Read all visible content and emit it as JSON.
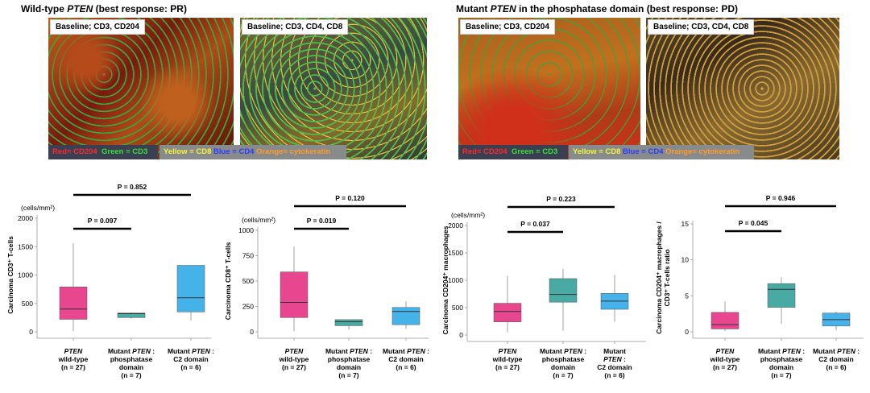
{
  "panels": {
    "left": {
      "title_prefix": "Wild-type ",
      "title_gene": "PTEN",
      "title_suffix": " (best response: PR)",
      "image1_label": "Baseline; CD3, CD204",
      "image2_label": "Baseline; CD3, CD4, CD8"
    },
    "right": {
      "title_prefix": "Mutant ",
      "title_gene": "PTEN",
      "title_suffix": " in the phosphatase domain (best response: PD)",
      "image1_label": "Baseline; CD3, CD204",
      "image2_label": "Baseline; CD3, CD4, CD8"
    }
  },
  "legend": {
    "red": "Red= CD204",
    "green": "Green = CD3",
    "yellow": "Yellow = CD8",
    "blue": "Blue = CD4",
    "orange": "Orange= cytokeratin",
    "colors": {
      "red": "#ff2a2a",
      "green": "#38e038",
      "yellow": "#f5f53a",
      "blue": "#2a3bff",
      "orange": "#ff9a2a"
    }
  },
  "group_labels": [
    [
      "PTEN",
      "wild-type",
      "(n = 27)"
    ],
    [
      "Mutant PTEN :",
      "phosphatase",
      "domain",
      "(n = 7)"
    ],
    [
      "Mutant PTEN :",
      "C2 domain",
      "(n = 6)"
    ]
  ],
  "group_labels_alt3": [
    "Mutant",
    "PTEN :",
    "C2 domain",
    "(n = 6)"
  ],
  "chart_data": [
    {
      "type": "box",
      "unit": "(cells/mm²)",
      "ylabel": "Carcinoma CD3⁺ T-cells",
      "ylim": [
        0,
        2000
      ],
      "yticks": [
        0,
        500,
        1000,
        1500,
        2000
      ],
      "boxes": [
        {
          "group": "PTEN wild-type (n = 27)",
          "min": 10,
          "q1": 220,
          "median": 400,
          "q3": 790,
          "max": 1560,
          "color": "#e8478f"
        },
        {
          "group": "Mutant PTEN : phosphatase domain (n = 7)",
          "min": 230,
          "q1": 250,
          "median": 320,
          "q3": 330,
          "max": 340,
          "color": "#48aaa3"
        },
        {
          "group": "Mutant PTEN : C2 domain (n = 6)",
          "min": 200,
          "q1": 350,
          "median": 600,
          "q3": 1170,
          "max": 1170,
          "color": "#45b2ea"
        }
      ],
      "pvalues": [
        {
          "label": "P = 0.097",
          "from": 0,
          "to": 1
        },
        {
          "label": "P = 0.852",
          "from": 0,
          "to": 2
        }
      ]
    },
    {
      "type": "box",
      "unit": "(cells/mm²)",
      "ylabel": "Carcinoma CD8⁺ T-cells",
      "ylim": [
        0,
        1000
      ],
      "yticks": [
        0,
        250,
        500,
        750,
        1000
      ],
      "boxes": [
        {
          "group": "PTEN wild-type (n = 27)",
          "min": 5,
          "q1": 140,
          "median": 290,
          "q3": 590,
          "max": 840,
          "color": "#e8478f"
        },
        {
          "group": "Mutant PTEN : phosphatase domain (n = 7)",
          "min": 20,
          "q1": 60,
          "median": 100,
          "q3": 120,
          "max": 120,
          "color": "#48aaa3"
        },
        {
          "group": "Mutant PTEN : C2 domain (n = 6)",
          "min": 30,
          "q1": 70,
          "median": 200,
          "q3": 240,
          "max": 300,
          "color": "#45b2ea"
        }
      ],
      "pvalues": [
        {
          "label": "P = 0.019",
          "from": 0,
          "to": 1
        },
        {
          "label": "P = 0.120",
          "from": 0,
          "to": 2
        }
      ]
    },
    {
      "type": "box",
      "unit": "(cells/mm²)",
      "ylabel": "Carcinoma CD204⁺ macrophages",
      "ylim": [
        0,
        2000
      ],
      "yticks": [
        0,
        500,
        1000,
        1500,
        2000
      ],
      "boxes": [
        {
          "group": "PTEN wild-type (n = 27)",
          "min": 50,
          "q1": 240,
          "median": 430,
          "q3": 580,
          "max": 1080,
          "color": "#e8478f"
        },
        {
          "group": "Mutant PTEN : phosphatase domain (n = 7)",
          "min": 80,
          "q1": 600,
          "median": 740,
          "q3": 1030,
          "max": 1210,
          "color": "#48aaa3"
        },
        {
          "group": "Mutant PTEN : C2 domain (n = 6)",
          "min": 240,
          "q1": 470,
          "median": 620,
          "q3": 760,
          "max": 1100,
          "color": "#45b2ea"
        }
      ],
      "pvalues": [
        {
          "label": "P = 0.037",
          "from": 0,
          "to": 1
        },
        {
          "label": "P = 0.223",
          "from": 0,
          "to": 2
        }
      ]
    },
    {
      "type": "box",
      "unit": "",
      "ylabel": "Carcinoma CD204⁺ macrophages / CD3⁺ T-cells ratio",
      "ylim": [
        0,
        15
      ],
      "yticks": [
        0,
        5,
        10,
        15
      ],
      "boxes": [
        {
          "group": "PTEN wild-type (n = 27)",
          "min": 0.1,
          "q1": 0.4,
          "median": 1.0,
          "q3": 2.7,
          "max": 4.2,
          "color": "#e8478f"
        },
        {
          "group": "Mutant PTEN : phosphatase domain (n = 7)",
          "min": 1.1,
          "q1": 3.4,
          "median": 5.9,
          "q3": 6.7,
          "max": 7.6,
          "color": "#48aaa3"
        },
        {
          "group": "Mutant PTEN : C2 domain (n = 6)",
          "min": 0.2,
          "q1": 0.8,
          "median": 1.7,
          "q3": 2.6,
          "max": 2.8,
          "color": "#45b2ea"
        }
      ],
      "pvalues": [
        {
          "label": "P = 0.045",
          "from": 0,
          "to": 1
        },
        {
          "label": "P = 0.946",
          "from": 0,
          "to": 2
        }
      ]
    }
  ]
}
